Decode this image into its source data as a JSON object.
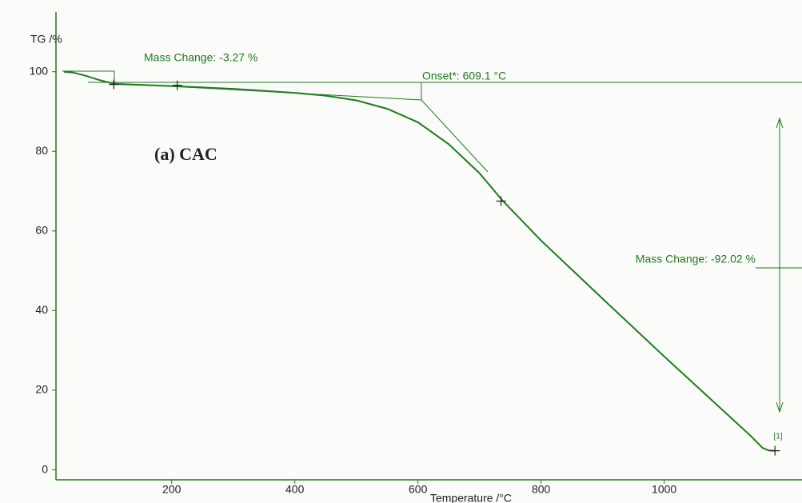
{
  "chart_data": {
    "type": "line",
    "ylabel": "TG /%",
    "xlabel": "Temperature /°C",
    "label": "(a) CAC",
    "annotations": [
      "Mass Change: -3.27 %",
      "Onset*: 609.1 °C",
      "Mass Change: -92.02 %",
      "[1]"
    ],
    "series": [
      {
        "color": "#1f7a1f",
        "x": [
          25,
          40,
          60,
          80,
          100,
          110,
          150,
          200,
          300,
          400,
          450,
          500,
          550,
          600,
          650,
          700,
          737,
          800,
          900,
          1000,
          1100,
          1140,
          1160,
          1170,
          1180
        ],
        "values": [
          100,
          99.8,
          99,
          98,
          97.2,
          96.9,
          96.7,
          96.4,
          95.7,
          94.7,
          94,
          92.8,
          90.7,
          87.3,
          81.8,
          74.5,
          67.7,
          57.6,
          43,
          28.5,
          14.3,
          8.6,
          5.5,
          4.9,
          4.8
        ]
      }
    ],
    "markers": {
      "x": [
        106,
        209,
        735,
        1180
      ],
      "values": [
        96.8,
        96.6,
        67.5,
        4.8
      ]
    },
    "xlim": [
      12,
      1220
    ],
    "ylim": [
      -2.5,
      115
    ],
    "xticks": [
      200,
      400,
      600,
      800,
      1000
    ],
    "yticks": [
      0,
      20,
      40,
      60,
      80,
      100
    ],
    "grid": false
  }
}
